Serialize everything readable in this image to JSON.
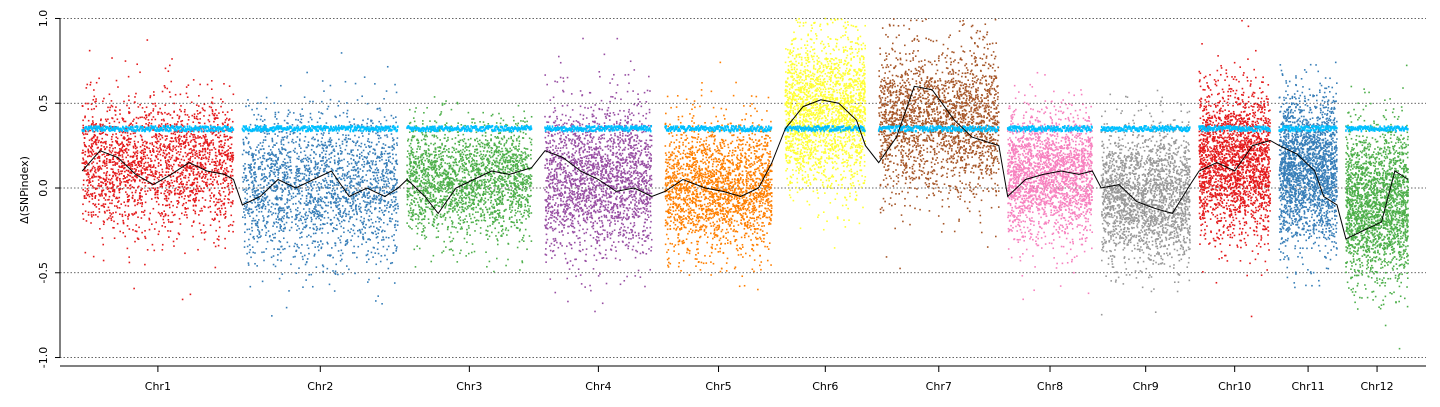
{
  "chart_data": {
    "type": "scatter",
    "title": "",
    "xlabel": "",
    "ylabel": "Δ(SNPindex)",
    "ylim": [
      -1.05,
      1.05
    ],
    "yticks": [
      -1.0,
      -0.5,
      0.0,
      0.5,
      1.0
    ],
    "yticklabels": [
      "-1.0",
      "-0.5",
      "0.0",
      "0.5",
      "1.0"
    ],
    "reference_lines": [
      -1.0,
      -0.5,
      0.0,
      0.5,
      1.0
    ],
    "grid": false,
    "legend": "none",
    "x_unit": "cumulative genomic position (Mb)",
    "xlim": [
      -25,
      1510
    ],
    "chromosomes": [
      {
        "name": "Chr1",
        "start": 0,
        "end": 170,
        "color": "#e41a1c"
      },
      {
        "name": "Chr2",
        "start": 180,
        "end": 355,
        "color": "#377eb8"
      },
      {
        "name": "Chr3",
        "start": 365,
        "end": 505,
        "color": "#4daf4a"
      },
      {
        "name": "Chr4",
        "start": 520,
        "end": 640,
        "color": "#984ea3"
      },
      {
        "name": "Chr5",
        "start": 655,
        "end": 775,
        "color": "#ff7f00"
      },
      {
        "name": "Chr6",
        "start": 790,
        "end": 880,
        "color": "#ffff33"
      },
      {
        "name": "Chr7",
        "start": 895,
        "end": 1030,
        "color": "#a65628"
      },
      {
        "name": "Chr8",
        "start": 1040,
        "end": 1135,
        "color": "#f781bf"
      },
      {
        "name": "Chr9",
        "start": 1145,
        "end": 1245,
        "color": "#999999"
      },
      {
        "name": "Chr10",
        "start": 1255,
        "end": 1335,
        "color": "#e41a1c"
      },
      {
        "name": "Chr11",
        "start": 1345,
        "end": 1410,
        "color": "#377eb8"
      },
      {
        "name": "Chr12",
        "start": 1420,
        "end": 1490,
        "color": "#4daf4a"
      }
    ],
    "threshold_series": {
      "color": "#00bfff",
      "values_by_chromosome": [
        0.35,
        0.35,
        0.35,
        0.35,
        0.35,
        0.35,
        0.35,
        0.35,
        0.35,
        0.35,
        0.35,
        0.35
      ]
    },
    "sliding_window_series": {
      "color": "#000000",
      "points": [
        [
          0,
          0.1
        ],
        [
          20,
          0.22
        ],
        [
          40,
          0.18
        ],
        [
          60,
          0.08
        ],
        [
          80,
          0.02
        ],
        [
          100,
          0.08
        ],
        [
          120,
          0.15
        ],
        [
          140,
          0.1
        ],
        [
          160,
          0.08
        ],
        [
          170,
          0.05
        ],
        [
          180,
          -0.1
        ],
        [
          200,
          -0.05
        ],
        [
          220,
          0.05
        ],
        [
          240,
          0.0
        ],
        [
          260,
          0.05
        ],
        [
          280,
          0.1
        ],
        [
          300,
          -0.05
        ],
        [
          320,
          0.0
        ],
        [
          340,
          -0.05
        ],
        [
          355,
          0.0
        ],
        [
          365,
          0.05
        ],
        [
          385,
          -0.05
        ],
        [
          400,
          -0.15
        ],
        [
          420,
          0.0
        ],
        [
          440,
          0.05
        ],
        [
          460,
          0.1
        ],
        [
          480,
          0.08
        ],
        [
          505,
          0.12
        ],
        [
          520,
          0.22
        ],
        [
          540,
          0.18
        ],
        [
          560,
          0.1
        ],
        [
          580,
          0.05
        ],
        [
          600,
          -0.02
        ],
        [
          620,
          0.0
        ],
        [
          640,
          -0.05
        ],
        [
          655,
          -0.02
        ],
        [
          675,
          0.05
        ],
        [
          700,
          0.0
        ],
        [
          720,
          -0.02
        ],
        [
          740,
          -0.05
        ],
        [
          760,
          0.0
        ],
        [
          775,
          0.15
        ],
        [
          790,
          0.35
        ],
        [
          810,
          0.48
        ],
        [
          830,
          0.52
        ],
        [
          850,
          0.5
        ],
        [
          870,
          0.4
        ],
        [
          880,
          0.25
        ],
        [
          895,
          0.15
        ],
        [
          915,
          0.3
        ],
        [
          935,
          0.6
        ],
        [
          955,
          0.58
        ],
        [
          980,
          0.4
        ],
        [
          1000,
          0.3
        ],
        [
          1030,
          0.25
        ],
        [
          1040,
          -0.05
        ],
        [
          1060,
          0.05
        ],
        [
          1080,
          0.08
        ],
        [
          1100,
          0.1
        ],
        [
          1120,
          0.08
        ],
        [
          1135,
          0.1
        ],
        [
          1145,
          0.0
        ],
        [
          1165,
          0.02
        ],
        [
          1185,
          -0.08
        ],
        [
          1205,
          -0.12
        ],
        [
          1225,
          -0.15
        ],
        [
          1245,
          0.02
        ],
        [
          1255,
          0.1
        ],
        [
          1275,
          0.15
        ],
        [
          1295,
          0.1
        ],
        [
          1315,
          0.25
        ],
        [
          1335,
          0.28
        ],
        [
          1345,
          0.25
        ],
        [
          1365,
          0.2
        ],
        [
          1385,
          0.1
        ],
        [
          1395,
          -0.05
        ],
        [
          1410,
          -0.1
        ],
        [
          1420,
          -0.3
        ],
        [
          1440,
          -0.25
        ],
        [
          1460,
          -0.2
        ],
        [
          1475,
          0.1
        ],
        [
          1490,
          0.05
        ]
      ]
    },
    "points_per_chromosome": 2200,
    "chromosome_profiles": [
      {
        "center": 0.15,
        "spread": 0.35
      },
      {
        "center": 0.0,
        "spread": 0.4
      },
      {
        "center": 0.05,
        "spread": 0.3
      },
      {
        "center": 0.05,
        "spread": 0.4
      },
      {
        "center": 0.0,
        "spread": 0.35
      },
      {
        "center": 0.45,
        "spread": 0.4
      },
      {
        "center": 0.4,
        "spread": 0.4
      },
      {
        "center": 0.08,
        "spread": 0.35
      },
      {
        "center": -0.05,
        "spread": 0.35
      },
      {
        "center": 0.15,
        "spread": 0.4
      },
      {
        "center": 0.1,
        "spread": 0.4
      },
      {
        "center": -0.1,
        "spread": 0.4
      }
    ]
  }
}
